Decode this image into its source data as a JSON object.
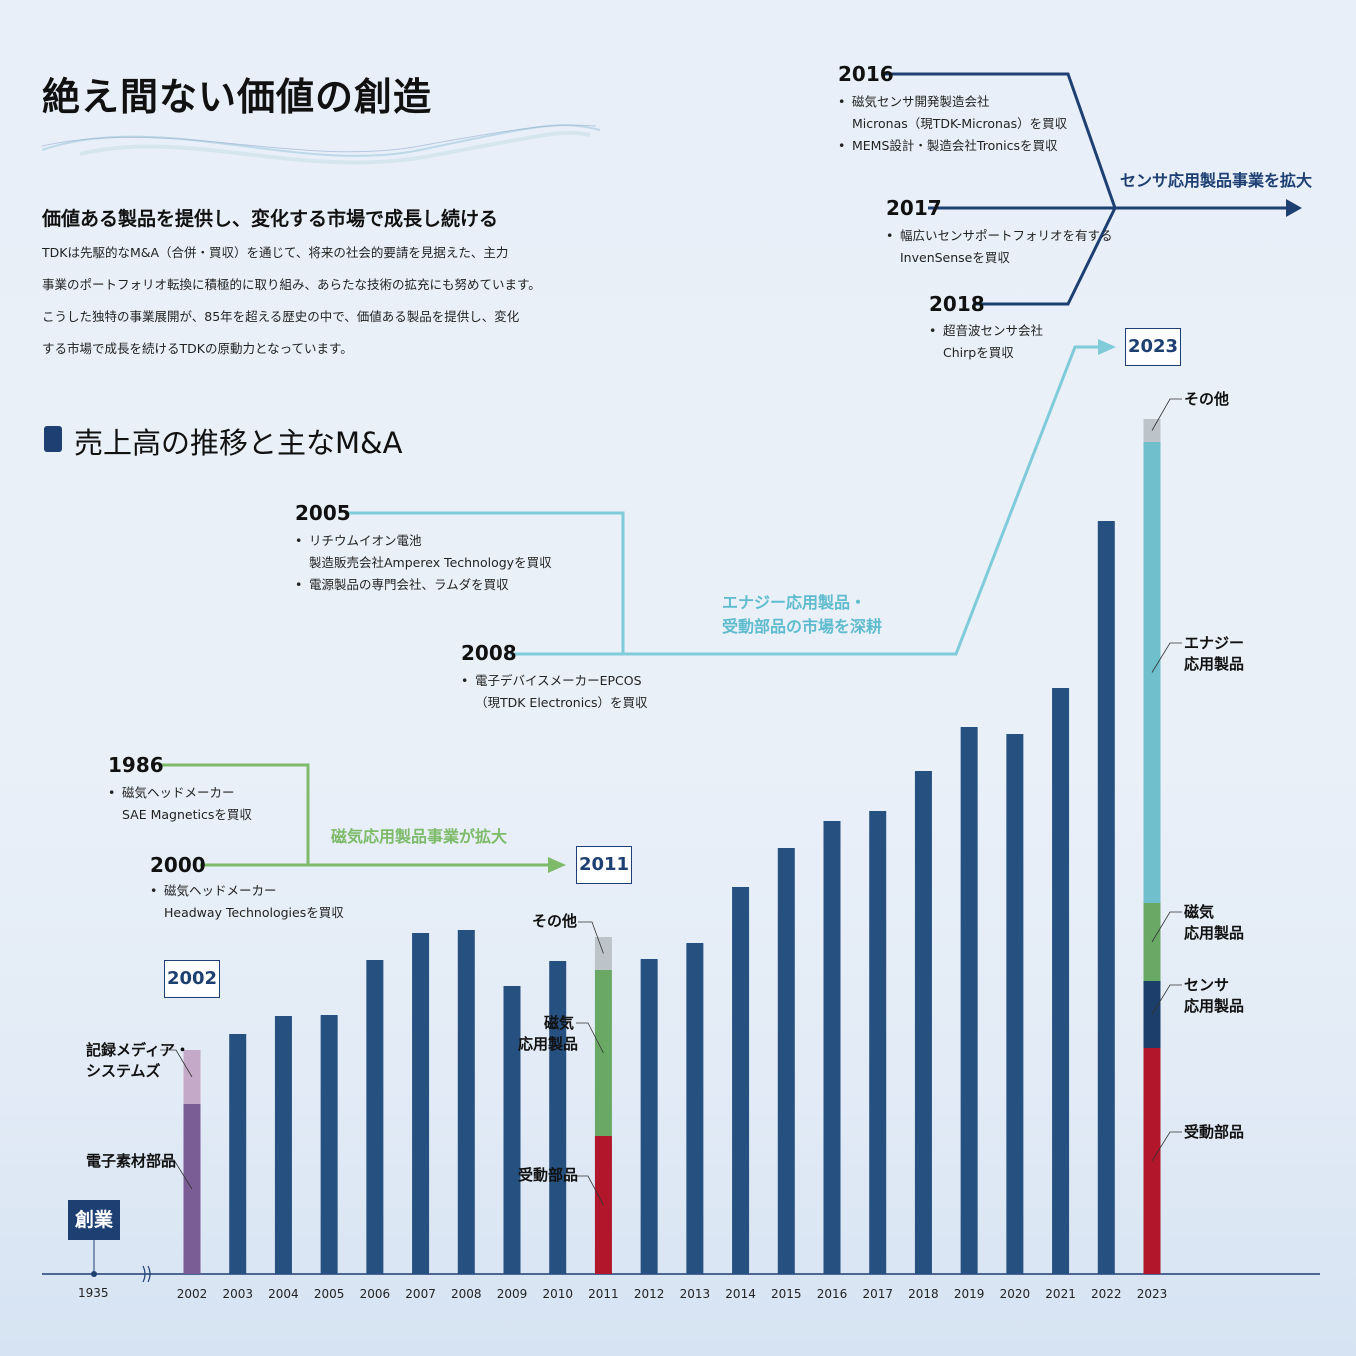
{
  "page": {
    "title": "絶え間ない価値の創造",
    "subtitle": "価値ある製品を提供し、変化する市場で成長し続ける",
    "body_lines": [
      "TDKは先駆的なM&A（合併・買収）を通じて、将来の社会的要請を見据えた、主力",
      "事業のポートフォリオ転換に積極的に取り組み、あらたな技術の拡充にも努めています。",
      "こうした独特の事業展開が、85年を超える歴史の中で、価値ある製品を提供し、変化",
      "する市場で成長を続けるTDKの原動力となっています。"
    ],
    "section_title": "売上高の推移と主なM&A"
  },
  "milestones": {
    "m1986": {
      "year": "1986",
      "bullets": [
        [
          "磁気ヘッドメーカー",
          "SAE Magneticsを買収"
        ]
      ]
    },
    "m2000": {
      "year": "2000",
      "bullets": [
        [
          "磁気ヘッドメーカー",
          "Headway Technologiesを買収"
        ]
      ]
    },
    "m2005": {
      "year": "2005",
      "bullets": [
        [
          "リチウムイオン電池",
          "製造販売会社Amperex Technologyを買収"
        ],
        [
          "電源製品の専門会社、ラムダを買収"
        ]
      ]
    },
    "m2008": {
      "year": "2008",
      "bullets": [
        [
          "電子デバイスメーカーEPCOS",
          "（現TDK Electronics）を買収"
        ]
      ]
    },
    "m2016": {
      "year": "2016",
      "bullets": [
        [
          "磁気センサ開発製造会社",
          "Micronas（現TDK-Micronas）を買収"
        ],
        [
          "MEMS設計・製造会社Tronicsを買収"
        ]
      ]
    },
    "m2017": {
      "year": "2017",
      "bullets": [
        [
          "幅広いセンサポートフォリオを有する",
          "InvenSenseを買収"
        ]
      ]
    },
    "m2018": {
      "year": "2018",
      "bullets": [
        [
          "超音波センサ会社",
          "Chirpを買収"
        ]
      ]
    }
  },
  "arrows": {
    "magnetic": "磁気応用製品事業が拡大",
    "energy_line1": "エナジー応用製品・",
    "energy_line2": "受動部品の市場を深耕",
    "sensor": "センサ応用製品事業を拡大"
  },
  "highlights": {
    "y2002": "2002",
    "y2011": "2011",
    "y2023": "2023"
  },
  "founding": {
    "label": "創業",
    "year": "1935"
  },
  "segment_labels": {
    "b2002": {
      "media": "記録メディア・|システムズ",
      "materials": "電子素材部品"
    },
    "b2011": {
      "other": "その他",
      "magnetic": "磁気|応用製品",
      "passive": "受動部品"
    },
    "b2023": {
      "other": "その他",
      "energy": "エナジー|応用製品",
      "magnetic": "磁気|応用製品",
      "sensor": "センサ|応用製品",
      "passive": "受動部品"
    }
  },
  "colors": {
    "bar": "#26507f",
    "magnetic_arrow": "#7dbb6a",
    "energy_arrow": "#7fcbd9",
    "sensor_arrow": "#1d3f72",
    "media": "#c4a9c8",
    "materials": "#7b5d96",
    "other": "#bcc4ca",
    "magnetic": "#6aa865",
    "passive": "#b1162a",
    "energy": "#6fbfcd",
    "sensor": "#1b3e6a"
  },
  "chart_data": {
    "type": "bar",
    "title": "売上高の推移と主なM&A",
    "xlabel": "",
    "ylabel": "",
    "note": "Revenue index; no numeric y-axis printed. Values are relative bar heights.",
    "categories": [
      "2002",
      "2003",
      "2004",
      "2005",
      "2006",
      "2007",
      "2008",
      "2009",
      "2010",
      "2011",
      "2012",
      "2013",
      "2014",
      "2015",
      "2016",
      "2017",
      "2018",
      "2019",
      "2020",
      "2021",
      "2022",
      "2023"
    ],
    "values": [
      22.4,
      24.0,
      25.8,
      25.9,
      31.4,
      34.1,
      34.4,
      28.8,
      31.3,
      33.7,
      31.5,
      33.1,
      38.7,
      42.6,
      45.3,
      46.3,
      50.3,
      54.7,
      54.0,
      58.6,
      75.3,
      85.5
    ],
    "stacked": {
      "2002": [
        {
          "segment": "電子素材部品",
          "value": 17.0
        },
        {
          "segment": "記録メディア・システムズ",
          "value": 5.4
        }
      ],
      "2011": [
        {
          "segment": "受動部品",
          "value": 13.8
        },
        {
          "segment": "磁気応用製品",
          "value": 16.6
        },
        {
          "segment": "その他",
          "value": 3.3
        }
      ],
      "2023": [
        {
          "segment": "受動部品",
          "value": 22.6
        },
        {
          "segment": "センサ応用製品",
          "value": 6.7
        },
        {
          "segment": "磁気応用製品",
          "value": 7.8
        },
        {
          "segment": "エナジー応用製品",
          "value": 46.1
        },
        {
          "segment": "その他",
          "value": 2.3
        }
      ]
    },
    "x_start_label": "1935",
    "axis_break": true,
    "ylim": [
      0,
      100
    ]
  }
}
